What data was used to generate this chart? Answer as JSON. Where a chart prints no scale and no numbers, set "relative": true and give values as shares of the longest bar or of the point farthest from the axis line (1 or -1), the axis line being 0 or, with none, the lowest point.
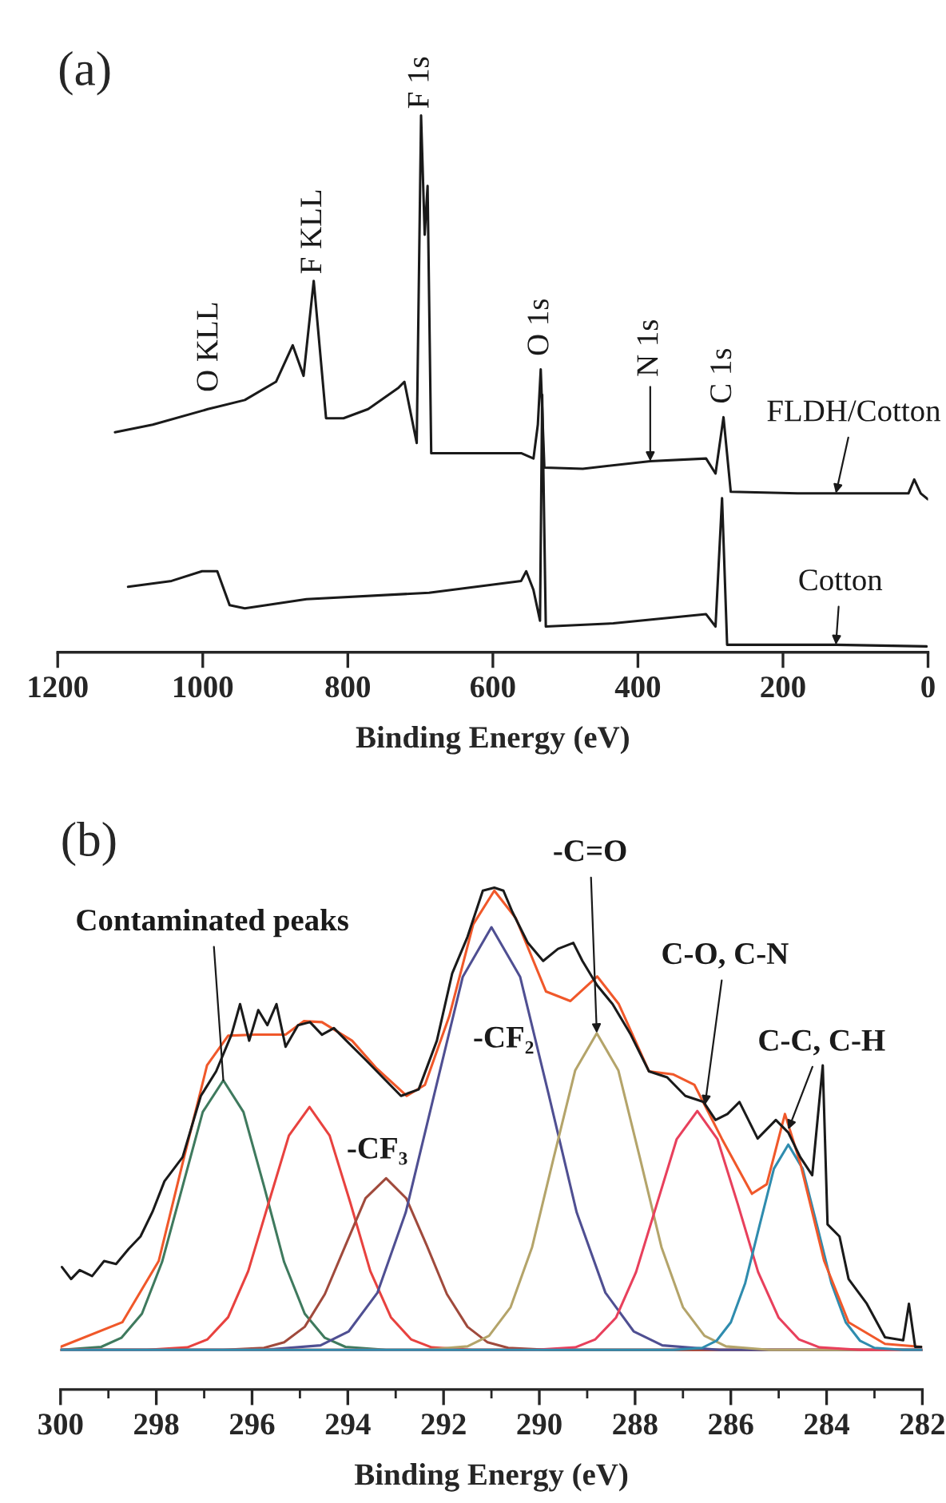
{
  "chart_data": [
    {
      "type": "line",
      "title": "(a)",
      "xlabel": "Binding Energy (eV)",
      "relative": true,
      "xlim": [
        1200,
        0
      ],
      "xticks": [
        1200,
        1000,
        800,
        600,
        400,
        200,
        0
      ],
      "series": [
        {
          "name": "FLDH/Cotton",
          "color": "#1a1a1a",
          "x": [
            1121,
            1069,
            993,
            942,
            899,
            876,
            861,
            847,
            830,
            806,
            772,
            730,
            722,
            705,
            699,
            694,
            690,
            685,
            645,
            561,
            544,
            538,
            534,
            529,
            476,
            383,
            306,
            293,
            282,
            272,
            180,
            127,
            27,
            19,
            10,
            0
          ],
          "values": [
            0.41,
            0.424,
            0.453,
            0.47,
            0.504,
            0.572,
            0.515,
            0.692,
            0.436,
            0.436,
            0.453,
            0.493,
            0.504,
            0.39,
            1.0,
            0.778,
            0.869,
            0.371,
            0.371,
            0.371,
            0.361,
            0.424,
            0.527,
            0.344,
            0.342,
            0.356,
            0.361,
            0.333,
            0.438,
            0.299,
            0.296,
            0.296,
            0.296,
            0.322,
            0.296,
            0.285
          ]
        },
        {
          "name": "Cotton",
          "color": "#1a1a1a",
          "x": [
            1103,
            1043,
            1001,
            980,
            963,
            942,
            857,
            688,
            561,
            554,
            544,
            535,
            532,
            527,
            434,
            306,
            293,
            284,
            277,
            180,
            127,
            2
          ],
          "values": [
            0.122,
            0.133,
            0.151,
            0.151,
            0.088,
            0.082,
            0.099,
            0.111,
            0.133,
            0.151,
            0.116,
            0.059,
            0.48,
            0.048,
            0.054,
            0.071,
            0.048,
            0.287,
            0.014,
            0.014,
            0.014,
            0.011
          ]
        }
      ],
      "annotations": [
        {
          "text": "O KLL",
          "x": 990,
          "y": 0.46
        },
        {
          "text": "F KLL",
          "x": 847,
          "y": 0.692
        },
        {
          "text": "F 1s",
          "x": 699,
          "y": 1.0
        },
        {
          "text": "O 1s",
          "x": 534,
          "y": 0.527
        },
        {
          "text": "N 1s",
          "x": 383,
          "y": 0.356
        },
        {
          "text": "C 1s",
          "x": 282,
          "y": 0.438
        }
      ]
    },
    {
      "type": "line",
      "title": "(b)",
      "xlabel": "Binding Energy (eV)",
      "relative": true,
      "xlim": [
        300,
        282
      ],
      "xticks": [
        300,
        298,
        296,
        294,
        292,
        290,
        288,
        286,
        284,
        282
      ],
      "series": [
        {
          "color": "#3f7a5e",
          "x": [
            300,
            299.15,
            298.73,
            298.3,
            297.88,
            297.45,
            297.03,
            296.6,
            296.18,
            295.75,
            295.33,
            294.9,
            294.48,
            294.05,
            293.2,
            282
          ],
          "values": [
            0.079,
            0.085,
            0.103,
            0.151,
            0.254,
            0.405,
            0.553,
            0.616,
            0.553,
            0.405,
            0.254,
            0.151,
            0.103,
            0.085,
            0.079,
            0.079
          ]
        },
        {
          "color": "#e8423f",
          "x": [
            300,
            298.2,
            297.35,
            296.93,
            296.5,
            296.08,
            295.65,
            295.23,
            294.8,
            294.38,
            293.95,
            293.53,
            293.1,
            292.68,
            292.25,
            291.4,
            282
          ],
          "values": [
            0.079,
            0.079,
            0.084,
            0.1,
            0.144,
            0.236,
            0.373,
            0.506,
            0.563,
            0.506,
            0.373,
            0.236,
            0.144,
            0.1,
            0.084,
            0.079,
            0.079
          ]
        },
        {
          "color": "#a04a3c",
          "x": [
            300,
            296.6,
            295.75,
            295.33,
            294.9,
            294.48,
            294.05,
            293.63,
            293.2,
            292.78,
            292.35,
            291.93,
            291.5,
            291.08,
            290.65,
            289.8,
            282
          ],
          "values": [
            0.079,
            0.079,
            0.083,
            0.094,
            0.125,
            0.19,
            0.287,
            0.381,
            0.421,
            0.381,
            0.287,
            0.19,
            0.125,
            0.094,
            0.083,
            0.079,
            0.079
          ]
        },
        {
          "color": "#4f4f92",
          "x": [
            300,
            295.76,
            294.57,
            293.98,
            293.38,
            292.79,
            292.19,
            291.6,
            291.0,
            290.4,
            289.81,
            289.22,
            288.62,
            288.03,
            287.43,
            286.24,
            282
          ],
          "values": [
            0.079,
            0.079,
            0.088,
            0.116,
            0.193,
            0.353,
            0.59,
            0.822,
            0.921,
            0.822,
            0.59,
            0.353,
            0.193,
            0.116,
            0.088,
            0.079,
            0.079
          ]
        },
        {
          "color": "#b4a46a",
          "x": [
            300,
            292.4,
            291.5,
            291.05,
            290.6,
            290.15,
            289.7,
            289.25,
            288.8,
            288.35,
            287.9,
            287.45,
            287.0,
            286.55,
            286.1,
            285.2,
            282
          ],
          "values": [
            0.079,
            0.079,
            0.086,
            0.107,
            0.164,
            0.284,
            0.462,
            0.636,
            0.71,
            0.636,
            0.462,
            0.284,
            0.164,
            0.107,
            0.086,
            0.079,
            0.079
          ]
        },
        {
          "color": "#e8405c",
          "x": [
            300,
            290.1,
            289.25,
            288.83,
            288.4,
            287.98,
            287.55,
            287.13,
            286.7,
            286.28,
            285.85,
            285.43,
            285.0,
            284.58,
            284.15,
            283.3,
            282
          ],
          "values": [
            0.079,
            0.079,
            0.084,
            0.1,
            0.143,
            0.234,
            0.368,
            0.499,
            0.555,
            0.499,
            0.368,
            0.234,
            0.143,
            0.1,
            0.084,
            0.079,
            0.079
          ]
        },
        {
          "color": "#2f8cae",
          "x": [
            300,
            287.2,
            286.6,
            286.3,
            286.0,
            285.7,
            285.4,
            285.1,
            284.8,
            284.5,
            284.2,
            283.9,
            283.6,
            283.3,
            283.0,
            282.4,
            282
          ],
          "values": [
            0.079,
            0.079,
            0.083,
            0.097,
            0.134,
            0.212,
            0.327,
            0.44,
            0.488,
            0.44,
            0.327,
            0.212,
            0.134,
            0.097,
            0.083,
            0.079,
            0.079
          ]
        },
        {
          "color": "#f0582a",
          "x": [
            300,
            298.71,
            297.95,
            297.45,
            296.94,
            296.5,
            295.93,
            295.3,
            294.92,
            294.54,
            293.91,
            293.4,
            292.77,
            292.39,
            291.88,
            291.38,
            290.94,
            290.49,
            289.86,
            289.35,
            288.79,
            288.34,
            287.71,
            287.21,
            286.76,
            286.19,
            285.56,
            285.25,
            284.87,
            284.55,
            284.05,
            283.54,
            282.78,
            282.02
          ],
          "values": [
            0.085,
            0.134,
            0.256,
            0.451,
            0.646,
            0.705,
            0.707,
            0.707,
            0.734,
            0.732,
            0.695,
            0.64,
            0.585,
            0.607,
            0.744,
            0.927,
            0.994,
            0.939,
            0.793,
            0.774,
            0.823,
            0.768,
            0.634,
            0.628,
            0.607,
            0.5,
            0.39,
            0.409,
            0.549,
            0.451,
            0.256,
            0.134,
            0.091,
            0.085
          ]
        },
        {
          "color": "#1a1a1a",
          "x": [
            299.97,
            299.78,
            299.6,
            299.34,
            299.09,
            298.84,
            298.58,
            298.33,
            298.08,
            297.83,
            297.45,
            297.07,
            296.75,
            296.43,
            296.25,
            296.06,
            295.87,
            295.68,
            295.49,
            295.3,
            295.04,
            294.79,
            294.54,
            294.29,
            294.03,
            293.65,
            293.27,
            292.89,
            292.52,
            292.14,
            291.82,
            291.5,
            291.18,
            290.94,
            290.75,
            290.56,
            290.24,
            289.92,
            289.61,
            289.29,
            289.1,
            288.79,
            288.47,
            288.09,
            287.71,
            287.33,
            286.95,
            286.57,
            286.32,
            286.07,
            285.82,
            285.44,
            285.06,
            284.8,
            284.55,
            284.3,
            284.08,
            283.98,
            283.73,
            283.54,
            283.16,
            282.78,
            282.4,
            282.28,
            282.15,
            282.02
          ],
          "values": [
            0.244,
            0.22,
            0.238,
            0.226,
            0.256,
            0.25,
            0.28,
            0.305,
            0.354,
            0.415,
            0.463,
            0.585,
            0.634,
            0.707,
            0.768,
            0.695,
            0.756,
            0.726,
            0.768,
            0.683,
            0.726,
            0.732,
            0.707,
            0.72,
            0.695,
            0.659,
            0.622,
            0.585,
            0.598,
            0.695,
            0.829,
            0.902,
            0.994,
            1.0,
            0.994,
            0.951,
            0.89,
            0.854,
            0.878,
            0.89,
            0.854,
            0.805,
            0.768,
            0.707,
            0.634,
            0.622,
            0.585,
            0.573,
            0.537,
            0.549,
            0.573,
            0.5,
            0.537,
            0.512,
            0.463,
            0.427,
            0.646,
            0.329,
            0.305,
            0.22,
            0.171,
            0.104,
            0.098,
            0.171,
            0.085,
            0.085
          ]
        }
      ],
      "annotations": [
        {
          "text": "Contaminated peaks",
          "x": 296.6,
          "y": 0.616
        },
        {
          "text": "-CF₃",
          "x": 293.2,
          "y": 0.421
        },
        "-CF₂",
        {
          "text": "-C=O",
          "x": 288.8,
          "y": 0.71
        },
        {
          "text": "C-O, C-N",
          "x": 286.54,
          "y": 0.567
        },
        {
          "text": "C-C, C-H",
          "x": 284.8,
          "y": 0.518
        }
      ]
    }
  ]
}
